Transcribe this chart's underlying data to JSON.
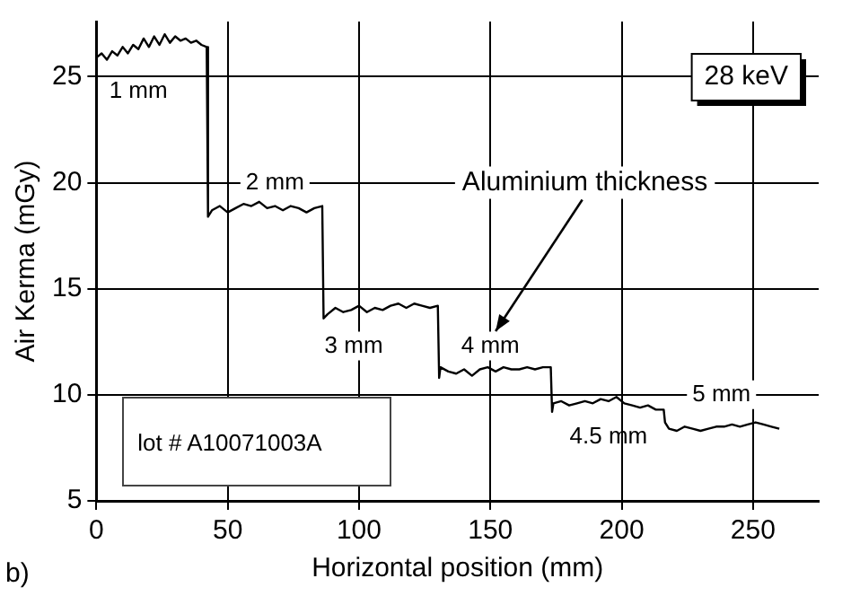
{
  "chart_data": {
    "type": "line",
    "xlabel": "Horizontal position (mm)",
    "ylabel": "Air Kerma (mGy)",
    "series": [
      {
        "color": "#000000",
        "x": [
          0,
          2,
          4,
          6,
          8,
          10,
          12,
          14,
          16,
          18,
          20,
          22,
          24,
          26,
          28,
          30,
          32,
          34,
          36,
          38,
          40,
          42,
          42.5,
          44,
          47,
          50,
          53,
          56,
          59,
          62,
          65,
          68,
          71,
          74,
          77,
          80,
          83,
          86,
          86.5,
          88,
          91,
          94,
          97,
          100,
          103,
          106,
          109,
          112,
          115,
          118,
          121,
          124,
          127,
          130,
          130.5,
          131,
          134,
          137,
          140,
          143,
          146,
          149,
          152,
          155,
          158,
          161,
          164,
          167,
          170,
          173,
          173.5,
          174,
          177,
          180,
          183,
          186,
          189,
          192,
          195,
          198,
          201,
          204,
          207,
          210,
          213,
          216,
          216.5,
          218,
          221,
          224,
          227,
          230,
          233,
          236,
          239,
          242,
          245,
          248,
          251,
          254,
          257,
          260
        ],
        "values": [
          25.9,
          26.1,
          25.8,
          26.2,
          26.0,
          26.4,
          26.1,
          26.5,
          26.3,
          26.8,
          26.4,
          26.9,
          26.5,
          27.0,
          26.6,
          26.9,
          26.7,
          26.8,
          26.6,
          26.7,
          26.5,
          26.4,
          18.4,
          18.7,
          18.9,
          18.6,
          18.8,
          19.0,
          18.9,
          19.1,
          18.8,
          18.9,
          18.7,
          18.9,
          18.8,
          18.6,
          18.8,
          18.9,
          13.6,
          13.8,
          14.1,
          13.9,
          14.0,
          14.2,
          13.9,
          14.1,
          14.0,
          14.2,
          14.3,
          14.1,
          14.3,
          14.2,
          14.1,
          14.2,
          10.8,
          11.3,
          11.1,
          11.0,
          11.2,
          10.9,
          11.2,
          11.3,
          11.1,
          11.3,
          11.2,
          11.2,
          11.3,
          11.2,
          11.3,
          11.3,
          9.2,
          9.6,
          9.7,
          9.5,
          9.6,
          9.7,
          9.6,
          9.8,
          9.7,
          9.9,
          9.6,
          9.5,
          9.4,
          9.5,
          9.3,
          9.3,
          8.7,
          8.4,
          8.3,
          8.5,
          8.4,
          8.3,
          8.4,
          8.5,
          8.5,
          8.6,
          8.5,
          8.6,
          8.7,
          8.6,
          8.5,
          8.4
        ]
      }
    ],
    "xlim": [
      0,
      275
    ],
    "xticks": [
      0,
      50,
      100,
      150,
      200,
      250
    ],
    "ylim": [
      5,
      27.6
    ],
    "yticks": [
      5,
      10,
      15,
      20,
      25
    ],
    "grid": true,
    "legend": false,
    "marker": "none",
    "line_style": "solid",
    "annotations": [
      {
        "text": "1 mm",
        "x": 16,
        "y": 24.3
      },
      {
        "text": "2 mm",
        "x": 68,
        "y": 20
      },
      {
        "text": "3 mm",
        "x": 98,
        "y": 12.3
      },
      {
        "text": "4 mm",
        "x": 150,
        "y": 12.3
      },
      {
        "text": "5 mm",
        "x": 238,
        "y": 10
      },
      "Aluminium thickness",
      "28 keV",
      "lot # A10071003A",
      "b)",
      "4.5 mm"
    ]
  }
}
